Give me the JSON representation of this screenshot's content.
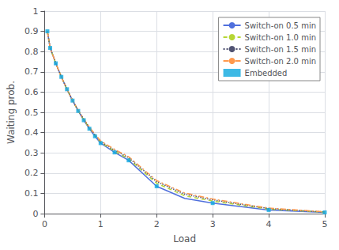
{
  "chart_data": {
    "type": "line",
    "xlabel": "Load",
    "ylabel": "Waiting prob.",
    "xlim": [
      0,
      5
    ],
    "ylim": [
      0,
      1
    ],
    "xticks": [
      0,
      1,
      2,
      3,
      4,
      5
    ],
    "yticks": [
      0.0,
      0.1,
      0.2,
      0.3,
      0.4,
      0.5,
      0.6,
      0.7,
      0.8,
      0.9,
      1.0
    ],
    "grid": true,
    "legend": "upper right",
    "series": [
      {
        "name": "Switch-on 0.5 min",
        "type": "line",
        "line_style": "solid",
        "x": [
          0.05,
          0.1,
          0.2,
          0.3,
          0.4,
          0.5,
          0.6,
          0.7,
          0.8,
          0.9,
          1.0,
          1.25,
          1.5,
          2.0,
          2.5,
          3.0,
          4.0,
          5.0
        ],
        "values": [
          0.9,
          0.818,
          0.742,
          0.675,
          0.614,
          0.558,
          0.507,
          0.461,
          0.419,
          0.382,
          0.348,
          0.302,
          0.263,
          0.135,
          0.075,
          0.052,
          0.018,
          0.006
        ]
      },
      {
        "name": "Switch-on 1.0 min",
        "type": "line",
        "line_style": "dashed",
        "x": [
          0.05,
          0.1,
          0.2,
          0.3,
          0.4,
          0.5,
          0.6,
          0.7,
          0.8,
          0.9,
          1.0,
          1.25,
          1.5,
          2.0,
          2.5,
          3.0,
          4.0,
          5.0
        ],
        "values": [
          0.9,
          0.818,
          0.742,
          0.675,
          0.614,
          0.558,
          0.508,
          0.463,
          0.422,
          0.386,
          0.352,
          0.308,
          0.27,
          0.15,
          0.088,
          0.062,
          0.022,
          0.007
        ]
      },
      {
        "name": "Switch-on 1.5 min",
        "type": "line",
        "line_style": "dotted",
        "x": [
          0.05,
          0.1,
          0.2,
          0.3,
          0.4,
          0.5,
          0.6,
          0.7,
          0.8,
          0.9,
          1.0,
          1.25,
          1.5,
          2.0,
          2.5,
          3.0,
          4.0,
          5.0
        ],
        "values": [
          0.9,
          0.818,
          0.742,
          0.675,
          0.614,
          0.559,
          0.51,
          0.465,
          0.425,
          0.389,
          0.356,
          0.313,
          0.276,
          0.158,
          0.096,
          0.068,
          0.025,
          0.008
        ]
      },
      {
        "name": "Switch-on 2.0 min",
        "type": "line",
        "line_style": "dashdot",
        "x": [
          0.05,
          0.1,
          0.2,
          0.3,
          0.4,
          0.5,
          0.6,
          0.7,
          0.8,
          0.9,
          1.0,
          1.25,
          1.5,
          2.0,
          2.5,
          3.0,
          4.0,
          5.0
        ],
        "values": [
          0.9,
          0.818,
          0.742,
          0.675,
          0.614,
          0.56,
          0.511,
          0.467,
          0.427,
          0.392,
          0.359,
          0.317,
          0.281,
          0.163,
          0.102,
          0.072,
          0.027,
          0.009
        ]
      },
      {
        "name": "Embedded",
        "type": "scatter",
        "marker": "square",
        "x": [
          0.05,
          0.1,
          0.2,
          0.3,
          0.4,
          0.5,
          0.6,
          0.7,
          0.8,
          0.9,
          1.0,
          1.25,
          1.5,
          2.0,
          3.0,
          4.0,
          5.0
        ],
        "values": [
          0.9,
          0.818,
          0.742,
          0.675,
          0.614,
          0.558,
          0.507,
          0.461,
          0.419,
          0.382,
          0.348,
          0.302,
          0.263,
          0.135,
          0.052,
          0.018,
          0.006
        ]
      }
    ]
  }
}
